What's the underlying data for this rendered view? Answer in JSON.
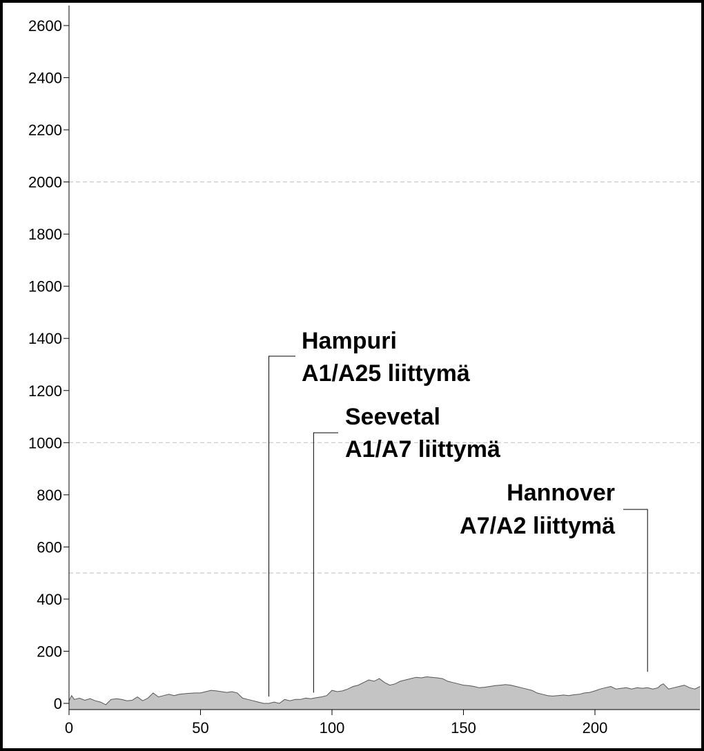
{
  "chart_data": {
    "type": "area",
    "title": "",
    "xlabel": "",
    "ylabel": "",
    "xlim": [
      0,
      240
    ],
    "ylim": [
      -20,
      2700
    ],
    "x_ticks": [
      0,
      50,
      100,
      150,
      200
    ],
    "y_ticks": [
      0,
      200,
      400,
      600,
      800,
      1000,
      1200,
      1400,
      1600,
      1800,
      2000,
      2200,
      2400,
      2600
    ],
    "grid_y": [
      500,
      2000
    ],
    "grid_lines": [
      1000
    ],
    "grid": true,
    "colors": {
      "fill": "#c4c4c4",
      "line": "#555555",
      "grid": "#bdbdbd",
      "axis": "#000000"
    },
    "series": [
      {
        "x": [
          0,
          1,
          2,
          4,
          6,
          8,
          10,
          12,
          14,
          16,
          18,
          20,
          22,
          24,
          26,
          28,
          30,
          32,
          34,
          36,
          38,
          40,
          42,
          45,
          48,
          50,
          52,
          54,
          56,
          58,
          60,
          62,
          64,
          66,
          68,
          70,
          72,
          74,
          76,
          78,
          80,
          82,
          84,
          86,
          88,
          90,
          92,
          94,
          96,
          98,
          100,
          102,
          104,
          106,
          108,
          110,
          112,
          114,
          116,
          118,
          120,
          122,
          124,
          126,
          128,
          130,
          132,
          134,
          136,
          138,
          140,
          142,
          144,
          146,
          148,
          150,
          152,
          154,
          156,
          158,
          160,
          162,
          164,
          166,
          168,
          170,
          172,
          174,
          176,
          178,
          180,
          182,
          184,
          186,
          188,
          190,
          192,
          194,
          196,
          198,
          200,
          202,
          204,
          206,
          208,
          210,
          212,
          214,
          216,
          218,
          220,
          222,
          224,
          225,
          226,
          228,
          230,
          232,
          234,
          236,
          238,
          240
        ],
        "values": [
          10,
          30,
          15,
          20,
          12,
          18,
          10,
          5,
          -5,
          15,
          18,
          15,
          10,
          12,
          25,
          10,
          20,
          40,
          25,
          30,
          35,
          30,
          35,
          38,
          40,
          40,
          45,
          50,
          48,
          45,
          42,
          45,
          40,
          20,
          15,
          10,
          5,
          0,
          0,
          5,
          0,
          15,
          10,
          15,
          15,
          20,
          18,
          22,
          25,
          30,
          50,
          45,
          48,
          55,
          65,
          70,
          80,
          90,
          85,
          95,
          80,
          70,
          75,
          85,
          90,
          95,
          100,
          98,
          102,
          100,
          98,
          95,
          85,
          80,
          75,
          70,
          68,
          65,
          60,
          62,
          65,
          68,
          70,
          72,
          70,
          65,
          60,
          55,
          50,
          40,
          35,
          30,
          28,
          30,
          32,
          30,
          33,
          35,
          40,
          42,
          48,
          55,
          60,
          65,
          55,
          58,
          60,
          55,
          60,
          58,
          60,
          55,
          60,
          70,
          75,
          55,
          60,
          65,
          70,
          60,
          55,
          65
        ]
      }
    ],
    "annotations": [
      {
        "lines": [
          "Hampuri",
          "A1/A25 liittymä"
        ],
        "x": 76,
        "y": 5,
        "align": "left"
      },
      {
        "lines": [
          "Seevetal",
          "A1/A7 liittymä"
        ],
        "x": 93,
        "y": 20,
        "align": "left"
      },
      {
        "lines": [
          "Hannover",
          "A7/A2 liittymä"
        ],
        "x": 220,
        "y": 100,
        "align": "right"
      }
    ]
  }
}
